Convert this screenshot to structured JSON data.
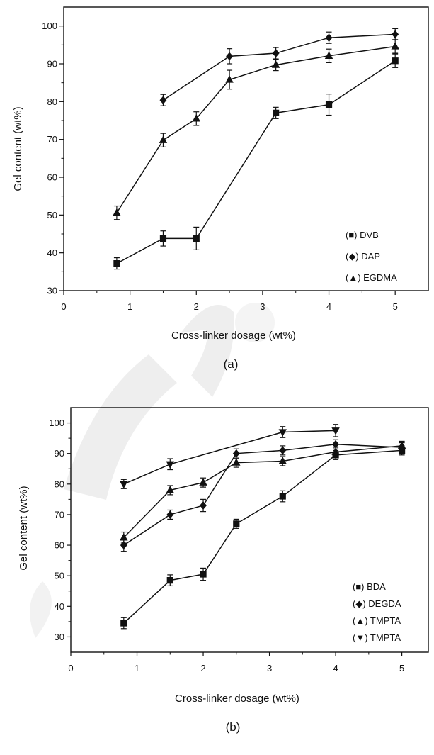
{
  "chart_data": [
    {
      "type": "line",
      "panel": "(a)",
      "xlabel": "Cross-linker dosage (wt%)",
      "ylabel": "Gel content (wt%)",
      "xlim": [
        0,
        5.5
      ],
      "ylim": [
        30,
        105
      ],
      "xticks": [
        0,
        1,
        2,
        3,
        4,
        5
      ],
      "yticks": [
        30,
        40,
        50,
        60,
        70,
        80,
        90,
        100
      ],
      "grid": false,
      "legend_position": "bottom-right",
      "series": [
        {
          "name": "DVB",
          "marker": "square",
          "x": [
            0.8,
            1.5,
            2.0,
            3.2,
            4.0,
            5.0
          ],
          "y": [
            37.2,
            43.8,
            43.8,
            77.0,
            79.2,
            90.8
          ],
          "err": [
            1.5,
            2.0,
            3.0,
            1.5,
            2.8,
            1.8
          ]
        },
        {
          "name": "DAP",
          "marker": "diamond",
          "x": [
            1.5,
            2.5,
            3.2,
            4.0,
            5.0
          ],
          "y": [
            80.4,
            92.0,
            92.8,
            96.9,
            97.8
          ],
          "err": [
            1.5,
            2.0,
            1.5,
            1.5,
            1.5
          ]
        },
        {
          "name": "EGDMA",
          "marker": "triangle-up",
          "x": [
            0.8,
            1.5,
            2.0,
            2.5,
            3.2,
            4.0,
            5.0
          ],
          "y": [
            50.6,
            69.8,
            75.5,
            85.8,
            89.7,
            92.1,
            94.6
          ],
          "err": [
            1.8,
            1.8,
            1.8,
            2.5,
            1.5,
            1.8,
            1.8
          ]
        }
      ]
    },
    {
      "type": "line",
      "panel": "(b)",
      "xlabel": "Cross-linker dosage (wt%)",
      "ylabel": "Gel content (wt%)",
      "xlim": [
        0,
        5.4
      ],
      "ylim": [
        25,
        105
      ],
      "xticks": [
        0,
        1,
        2,
        3,
        4,
        5
      ],
      "yticks": [
        30,
        40,
        50,
        60,
        70,
        80,
        90,
        100
      ],
      "grid": false,
      "legend_position": "bottom-right",
      "series": [
        {
          "name": "BDA",
          "marker": "square",
          "x": [
            0.8,
            1.5,
            2.0,
            2.5,
            3.2,
            4.0,
            5.0
          ],
          "y": [
            34.5,
            48.5,
            50.5,
            67.0,
            76.0,
            89.5,
            91.0
          ],
          "err": [
            1.8,
            1.8,
            2.0,
            1.5,
            1.8,
            1.5,
            1.5
          ]
        },
        {
          "name": "DEGDA",
          "marker": "diamond",
          "x": [
            0.8,
            1.5,
            2.0,
            2.5,
            3.2,
            4.0,
            5.0
          ],
          "y": [
            60.0,
            70.0,
            73.0,
            90.0,
            91.0,
            93.0,
            92.0
          ],
          "err": [
            2.0,
            1.5,
            2.0,
            1.5,
            1.5,
            1.5,
            1.5
          ]
        },
        {
          "name": "TMPTA",
          "marker": "triangle-up",
          "x": [
            0.8,
            1.5,
            2.0,
            2.5,
            3.2,
            4.0,
            5.0
          ],
          "y": [
            62.5,
            78.0,
            80.5,
            87.0,
            87.5,
            90.5,
            92.5
          ],
          "err": [
            1.8,
            1.5,
            1.5,
            1.5,
            1.5,
            1.5,
            1.5
          ]
        },
        {
          "name": "TMPTA",
          "marker": "triangle-down",
          "x": [
            0.8,
            1.5,
            3.2,
            4.0
          ],
          "y": [
            80.0,
            86.5,
            97.0,
            97.5
          ],
          "err": [
            1.5,
            1.8,
            1.8,
            2.0
          ]
        }
      ]
    }
  ],
  "captions": {
    "a": "(a)",
    "b": "(b)"
  },
  "legend_a": [
    "(■) DVB",
    "(◆) DAP",
    "(▲) EGDMA"
  ],
  "legend_b": [
    "(■) BDA",
    "(◆) DEGDA",
    "(▲) TMPTA",
    "(▼) TMPTA"
  ],
  "colors": {
    "ink": "#111111",
    "watermark": "#cccccc"
  }
}
